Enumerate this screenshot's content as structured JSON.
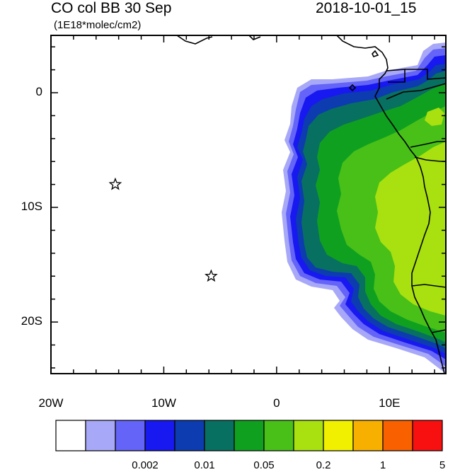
{
  "header": {
    "title": "CO col BB 30 Sep",
    "units": "(1E18*molec/cm2)",
    "date": "2018-10-01_15"
  },
  "map": {
    "lon_range": [
      -20,
      15
    ],
    "lat_range": [
      -24.5,
      5
    ],
    "lon_ticks": [
      {
        "value": -20,
        "label": "20W"
      },
      {
        "value": -10,
        "label": "10W"
      },
      {
        "value": 0,
        "label": "0"
      },
      {
        "value": 10,
        "label": "10E"
      }
    ],
    "lat_ticks": [
      {
        "value": 0,
        "label": "0"
      },
      {
        "value": -10,
        "label": "10S"
      },
      {
        "value": -20,
        "label": "20S"
      }
    ],
    "markers": [
      {
        "name": "star-marker-1",
        "lon": -14.3,
        "lat": -8.0
      },
      {
        "name": "star-marker-2",
        "lon": -5.8,
        "lat": -16.0
      }
    ]
  },
  "colorbar": {
    "colors": [
      "#ffffff",
      "#a8a8f8",
      "#6464f8",
      "#1818f0",
      "#0c3cb0",
      "#087060",
      "#10a020",
      "#48c018",
      "#a8e010",
      "#f0f000",
      "#f8b000",
      "#f86000",
      "#f81010"
    ],
    "labels": [
      {
        "after_index": 2,
        "text": "0.002"
      },
      {
        "after_index": 4,
        "text": "0.01"
      },
      {
        "after_index": 6,
        "text": "0.05"
      },
      {
        "after_index": 8,
        "text": "0.2"
      },
      {
        "after_index": 10,
        "text": "1"
      },
      {
        "after_index": 12,
        "text": "5"
      }
    ]
  }
}
